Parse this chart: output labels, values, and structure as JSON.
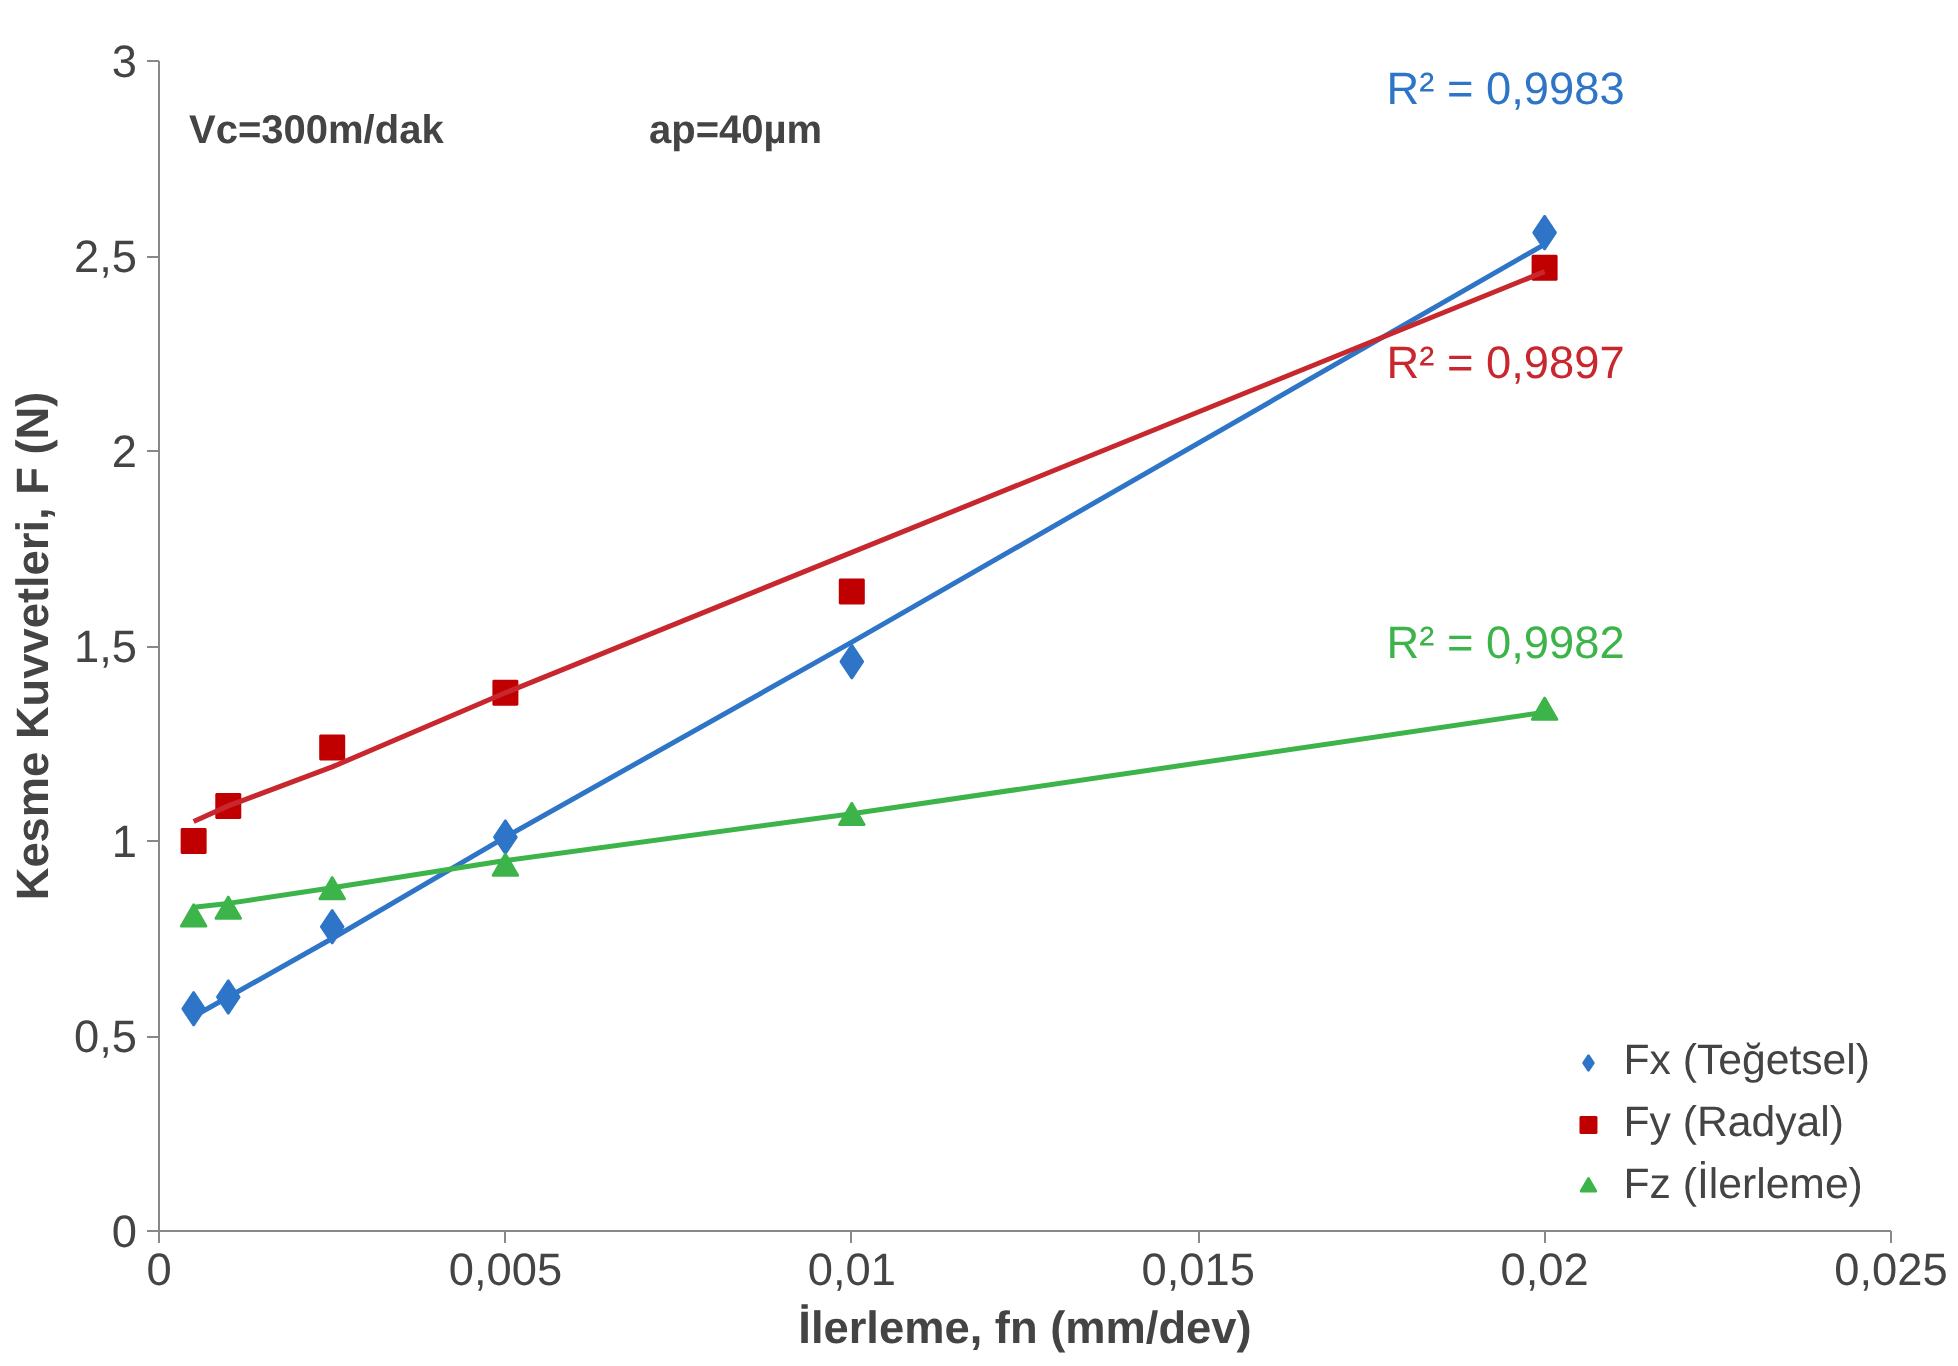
{
  "chart_data": {
    "type": "scatter",
    "xlabel": "İlerleme, fn (mm/dev)",
    "ylabel": "Kesme Kuvvetleri, F (N)",
    "x": [
      0.0005,
      0.001,
      0.0025,
      0.005,
      0.01,
      0.02
    ],
    "series": [
      {
        "name": "Fx (Teğetsel)",
        "color": "#2e75c8",
        "marker": "diamond",
        "values": [
          0.57,
          0.6,
          0.78,
          1.01,
          1.46,
          2.56
        ]
      },
      {
        "name": "Fy (Radyal)",
        "color": "#c00000",
        "marker": "square",
        "values": [
          1.0,
          1.09,
          1.24,
          1.38,
          1.64,
          2.47
        ]
      },
      {
        "name": "Fz (İlerleme)",
        "color": "#3cb44a",
        "marker": "triangle",
        "values": [
          0.8,
          0.82,
          0.87,
          0.93,
          1.06,
          1.33
        ]
      },
      {
        "type": "line",
        "color": "#2e75c8",
        "values": [
          0.55,
          0.6,
          0.75,
          1.01,
          1.51,
          2.53
        ]
      },
      {
        "type": "line",
        "color": "#c8282d",
        "values": [
          1.05,
          1.09,
          1.19,
          1.38,
          1.74,
          2.46
        ]
      },
      {
        "type": "line",
        "color": "#3cb44a",
        "values": [
          0.83,
          0.84,
          0.88,
          0.95,
          1.07,
          1.33
        ]
      }
    ],
    "annotations": [
      "Vc=300m/dak",
      "ap=40µm",
      "R² = 0,9983",
      "R² = 0,9897",
      "R² = 0,9982"
    ],
    "xlim": [
      0,
      0.025
    ],
    "ylim": [
      0,
      3
    ],
    "xticks": [
      0,
      {
        "value": 0.005,
        "label": "0,005"
      },
      {
        "value": 0.01,
        "label": "0,01"
      },
      {
        "value": 0.015,
        "label": "0,015"
      },
      {
        "value": 0.02,
        "label": "0,02"
      },
      {
        "value": 0.025,
        "label": "0,025"
      }
    ],
    "yticks": [
      0,
      {
        "value": 0.5,
        "label": "0,5"
      },
      1,
      {
        "value": 1.5,
        "label": "1,5"
      },
      2,
      {
        "value": 2.5,
        "label": "2,5"
      },
      3
    ],
    "grid": false,
    "legend": "bottom right"
  }
}
